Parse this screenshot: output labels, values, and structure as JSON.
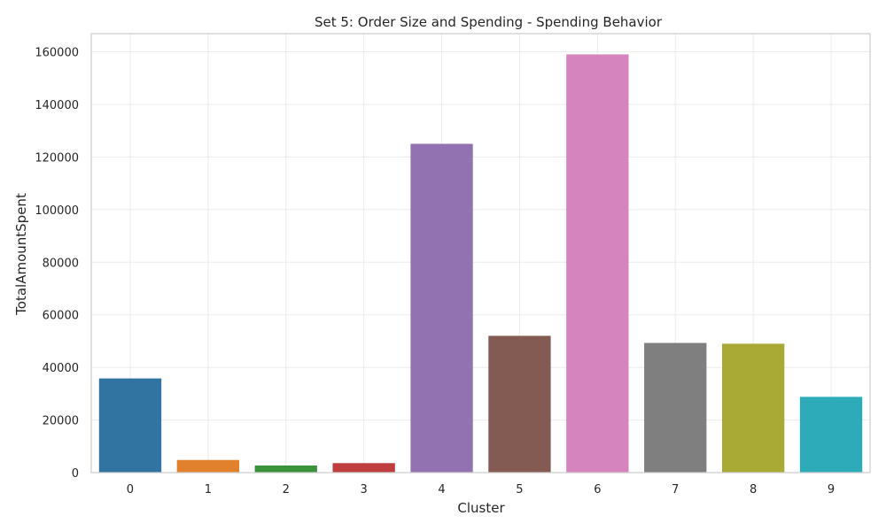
{
  "chart_data": {
    "type": "bar",
    "title": "Set 5: Order Size and Spending - Spending Behavior",
    "xlabel": "Cluster",
    "ylabel": "TotalAmountSpent",
    "categories": [
      "0",
      "1",
      "2",
      "3",
      "4",
      "5",
      "6",
      "7",
      "8",
      "9"
    ],
    "values": [
      35800,
      4800,
      2700,
      3600,
      125000,
      52000,
      159000,
      49300,
      49000,
      28800
    ],
    "ylim": [
      0,
      166900
    ],
    "yticks": [
      0,
      20000,
      40000,
      60000,
      80000,
      100000,
      120000,
      140000,
      160000
    ],
    "ytick_labels": [
      "0",
      "20000",
      "40000",
      "60000",
      "80000",
      "100000",
      "120000",
      "140000",
      "160000"
    ],
    "grid": true,
    "legend": "none",
    "colors": [
      "#3274a1",
      "#e1812c",
      "#3a923a",
      "#c03d3e",
      "#9372b2",
      "#845b53",
      "#d684bd",
      "#7f7f7f",
      "#a9aa35",
      "#2eabb8"
    ],
    "frame_color": "#cccccc",
    "grid_color": "#ebebeb"
  }
}
